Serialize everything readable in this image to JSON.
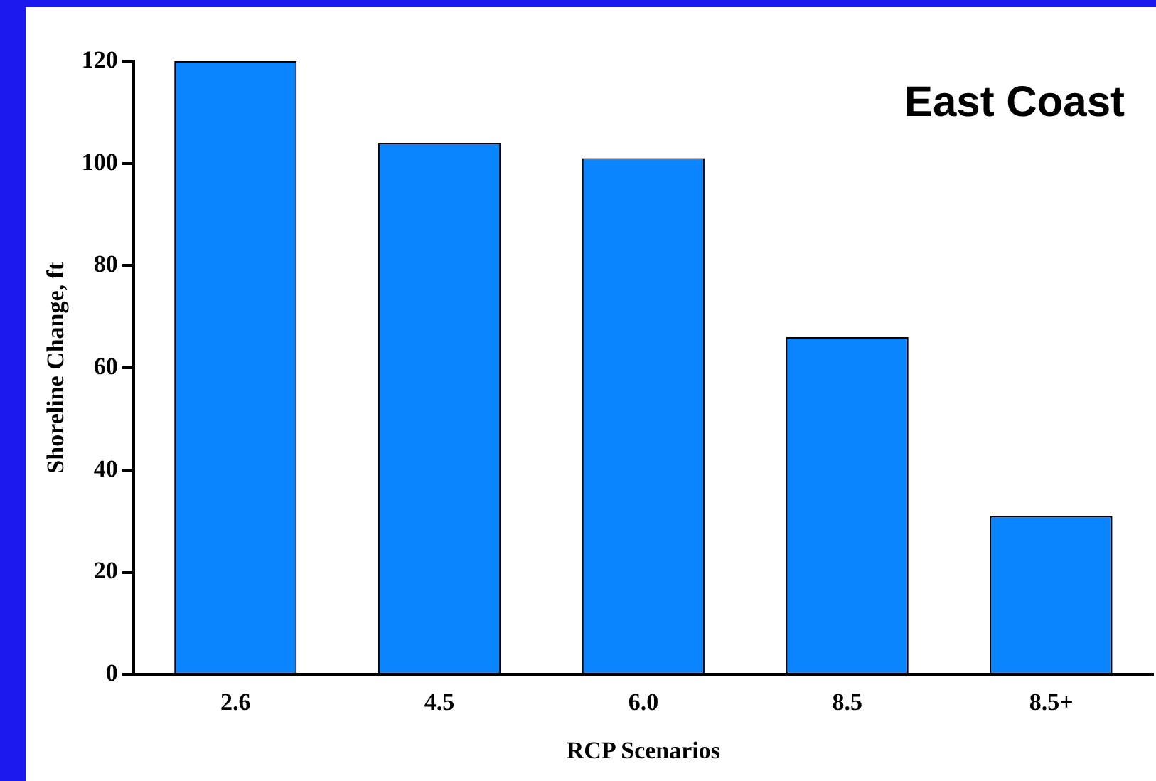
{
  "chart_data": {
    "type": "bar",
    "title": "East Coast",
    "xlabel": "RCP Scenarios",
    "ylabel": "Shoreline Change, ft",
    "categories": [
      "2.6",
      "4.5",
      "6.0",
      "8.5",
      "8.5+"
    ],
    "values": [
      120,
      104,
      101,
      66,
      31
    ],
    "color": "#0a84ff",
    "ylim": [
      0,
      120
    ],
    "yticks": [
      0,
      20,
      40,
      60,
      80,
      100,
      120
    ],
    "grid": false,
    "legend": false
  }
}
